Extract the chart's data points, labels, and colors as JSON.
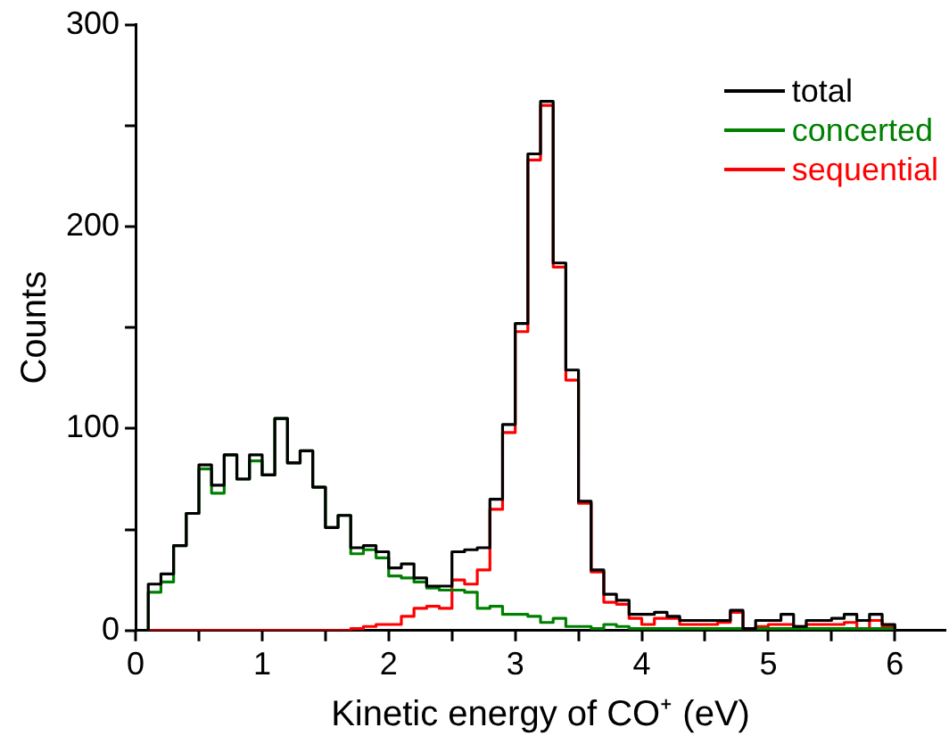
{
  "chart_data": {
    "type": "histogram",
    "xlabel": "Kinetic energy of CO⁺ (eV)",
    "ylabel": "Counts",
    "bins": [
      0.1,
      0.2,
      0.3,
      0.4,
      0.5,
      0.6,
      0.7,
      0.8,
      0.9,
      1.0,
      1.1,
      1.2,
      1.3,
      1.4,
      1.5,
      1.6,
      1.7,
      1.8,
      1.9,
      2.0,
      2.1,
      2.2,
      2.3,
      2.4,
      2.5,
      2.6,
      2.7,
      2.8,
      2.9,
      3.0,
      3.1,
      3.2,
      3.3,
      3.4,
      3.5,
      3.6,
      3.7,
      3.8,
      3.9,
      4.0,
      4.1,
      4.2,
      4.3,
      4.4,
      4.5,
      4.6,
      4.7,
      4.8,
      4.9,
      5.0,
      5.1,
      5.2,
      5.3,
      5.4,
      5.5,
      5.6,
      5.7,
      5.8,
      5.9,
      6.0
    ],
    "series": [
      {
        "name": "total",
        "color": "#000000",
        "values": [
          23,
          28,
          42,
          58,
          82,
          72,
          87,
          75,
          87,
          77,
          105,
          83,
          89,
          71,
          51,
          57,
          41,
          42,
          39,
          31,
          33,
          26,
          22,
          22,
          39,
          40,
          41,
          65,
          102,
          152,
          236,
          262,
          182,
          129,
          64,
          30,
          18,
          15,
          8,
          8,
          9,
          7,
          5,
          5,
          5,
          5,
          10,
          1,
          5,
          5,
          8,
          2,
          5,
          5,
          6,
          8,
          5,
          8,
          3
        ]
      },
      {
        "name": "concerted",
        "color": "#008000",
        "values": [
          19,
          24,
          42,
          58,
          80,
          68,
          87,
          75,
          84,
          77,
          105,
          83,
          89,
          71,
          51,
          57,
          38,
          40,
          36,
          27,
          26,
          24,
          21,
          20,
          20,
          19,
          11,
          12,
          8,
          8,
          7,
          4,
          6,
          2,
          2,
          1,
          3,
          2,
          1,
          1,
          1,
          1,
          1,
          1,
          1,
          1,
          1,
          1,
          1,
          1,
          1,
          1,
          1,
          1,
          1,
          1,
          1,
          1,
          1
        ]
      },
      {
        "name": "sequential",
        "color": "#ff0000",
        "values": [
          0,
          0,
          0,
          0,
          0,
          0,
          0,
          0,
          0,
          0,
          0,
          0,
          0,
          0,
          0,
          0,
          1,
          2,
          3,
          3,
          7,
          11,
          12,
          11,
          25,
          23,
          30,
          60,
          98,
          148,
          233,
          260,
          180,
          124,
          63,
          29,
          14,
          13,
          6,
          3,
          6,
          6,
          3,
          3,
          3,
          4,
          9,
          1,
          2,
          3,
          3,
          2,
          3,
          3,
          3,
          4,
          1,
          5,
          2
        ]
      }
    ],
    "xlim": [
      0,
      6.4
    ],
    "xticks": [
      0,
      {
        "value": 0.5,
        "label": null
      },
      1,
      {
        "value": 1.5,
        "label": null
      },
      2,
      {
        "value": 2.5,
        "label": null
      },
      3,
      {
        "value": 3.5,
        "label": null
      },
      4,
      {
        "value": 4.5,
        "label": null
      },
      5,
      {
        "value": 5.5,
        "label": null
      },
      6
    ],
    "ylim": [
      0,
      300
    ],
    "yticks": [
      0,
      {
        "value": 50,
        "label": null
      },
      100,
      {
        "value": 150,
        "label": null
      },
      200,
      {
        "value": 250,
        "label": null
      },
      300
    ],
    "grid": false,
    "legend": "top right"
  }
}
